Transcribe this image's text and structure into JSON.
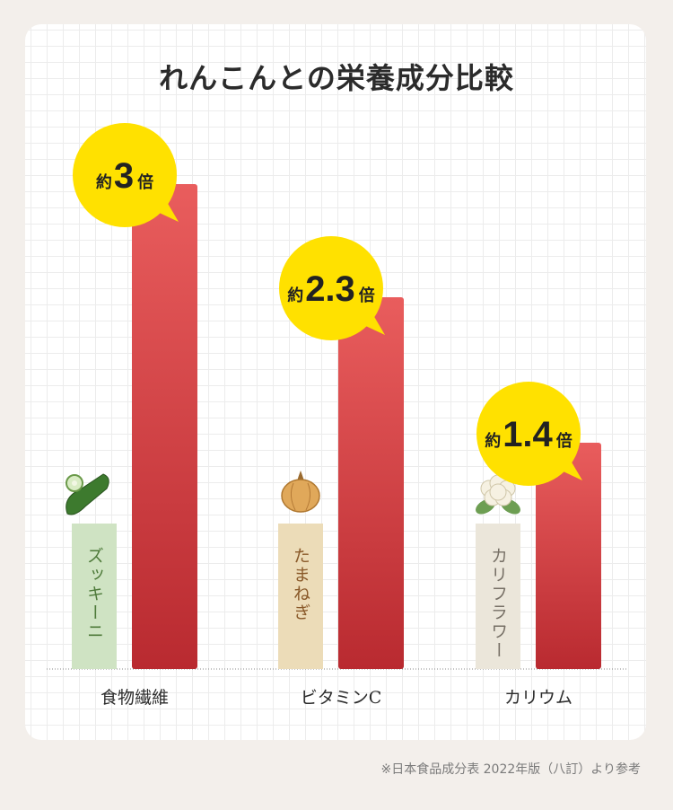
{
  "title": "れんこんとの栄養成分比較",
  "footnote": "※日本食品成分表 2022年版（八訂）より参考",
  "colors": {
    "lotus_bar": "#d63a3e",
    "bubble": "#ffe100",
    "zucchini_bar": "#cfe3c3",
    "onion_bar": "#ecdcb8",
    "cauliflower_bar": "#ebe6da"
  },
  "chart_data": {
    "type": "bar",
    "title": "れんこんとの栄養成分比較",
    "categories": [
      "食物繊維",
      "ビタミンC",
      "カリウム"
    ],
    "comparisons": [
      "ズッキーニ",
      "たまねぎ",
      "カリフラワー"
    ],
    "comparison_icons": [
      "zucchini-icon",
      "onion-icon",
      "cauliflower-icon"
    ],
    "comparison_text_colors": [
      "#4e7a3a",
      "#8a5a2a",
      "#777066"
    ],
    "comparison_bar_colors": [
      "#cfe3c3",
      "#ecdcb8",
      "#ebe6da"
    ],
    "series": [
      {
        "values": [
          1,
          1,
          1
        ]
      },
      {
        "values": [
          3,
          2.3,
          1.4
        ]
      }
    ],
    "ratio_prefix": "約",
    "ratio_suffix": "倍",
    "ratio_labels": [
      "3",
      "2.3",
      "1.4"
    ],
    "grid": true
  }
}
